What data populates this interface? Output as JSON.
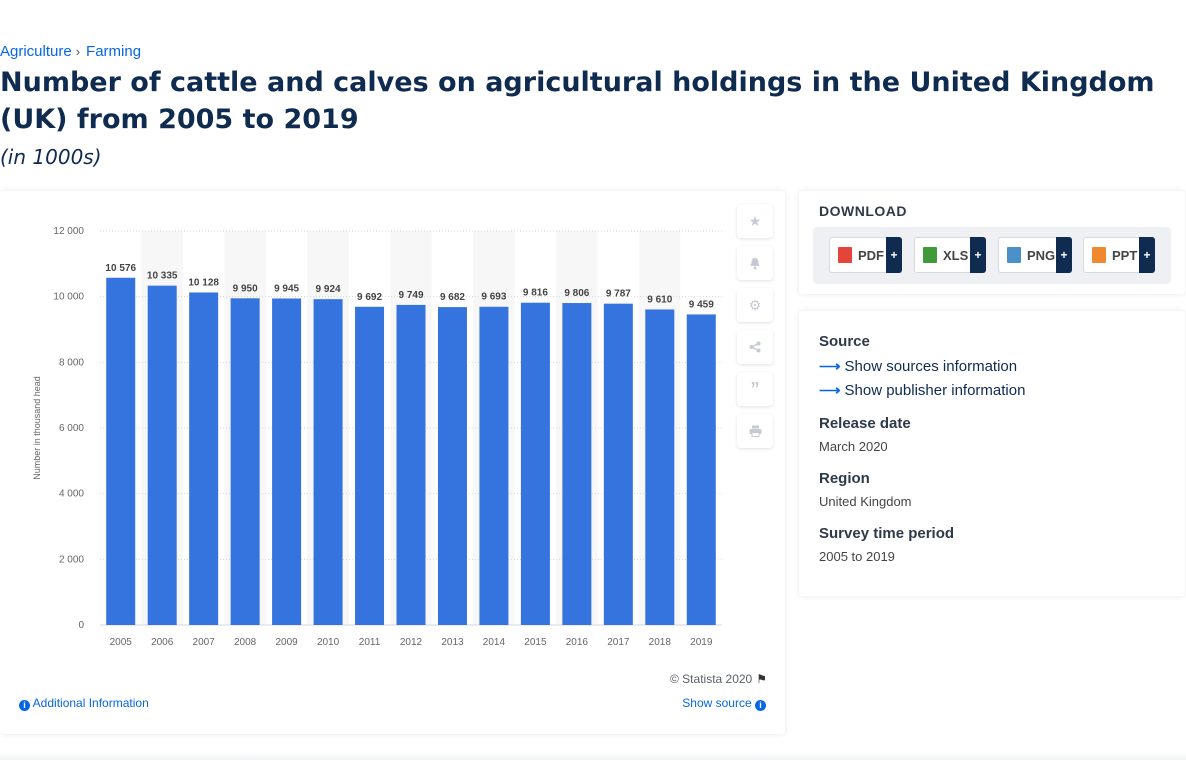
{
  "breadcrumb": [
    "Agriculture",
    "Farming"
  ],
  "breadcrumb_sep": "›",
  "title": "Number of cattle and calves on agricultural holdings in the United Kingdom (UK) from 2005 to 2019",
  "subtitle": "(in 1000s)",
  "credit": "© Statista 2020",
  "additional_info": "Additional Information",
  "show_source": "Show source",
  "download": {
    "title": "DOWNLOAD",
    "buttons": [
      {
        "label": "PDF",
        "color": "#e5443a"
      },
      {
        "label": "XLS",
        "color": "#3f9b3a"
      },
      {
        "label": "PNG",
        "color": "#4a90c9"
      },
      {
        "label": "PPT",
        "color": "#f0892e"
      }
    ],
    "plus": "+"
  },
  "info": {
    "source_label": "Source",
    "show_sources": "Show sources information",
    "show_publisher": "Show publisher information",
    "release_label": "Release date",
    "release_value": "March 2020",
    "region_label": "Region",
    "region_value": "United Kingdom",
    "period_label": "Survey time period",
    "period_value": "2005 to 2019"
  },
  "toolbar_icons": [
    "star-icon",
    "bell-icon",
    "gear-icon",
    "share-icon",
    "quote-icon",
    "print-icon"
  ],
  "colors": {
    "bar": "#3573de",
    "accent": "#0666e5",
    "dark": "#0f2b50"
  },
  "chart_data": {
    "type": "bar",
    "categories": [
      "2005",
      "2006",
      "2007",
      "2008",
      "2009",
      "2010",
      "2011",
      "2012",
      "2013",
      "2014",
      "2015",
      "2016",
      "2017",
      "2018",
      "2019"
    ],
    "values": [
      10576,
      10335,
      10128,
      9950,
      9945,
      9924,
      9692,
      9749,
      9682,
      9693,
      9816,
      9806,
      9787,
      9610,
      9459
    ],
    "value_labels": [
      "10 576",
      "10 335",
      "10 128",
      "9 950",
      "9 945",
      "9 924",
      "9 692",
      "9 749",
      "9 682",
      "9 693",
      "9 816",
      "9 806",
      "9 787",
      "9 610",
      "9 459"
    ],
    "ylabel": "Number in thousand head",
    "ylim": [
      0,
      12000
    ],
    "yticks": [
      0,
      2000,
      4000,
      6000,
      8000,
      10000,
      12000
    ],
    "ytick_labels": [
      "0",
      "2 000",
      "4 000",
      "6 000",
      "8 000",
      "10 000",
      "12 000"
    ],
    "grid": true
  }
}
